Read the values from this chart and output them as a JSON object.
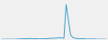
{
  "values": [
    0,
    0,
    0,
    0,
    0,
    0,
    0,
    1,
    1,
    2,
    2,
    2,
    2,
    3,
    2,
    2,
    2,
    1,
    2,
    2,
    2,
    3,
    3,
    4,
    4,
    5,
    6,
    5,
    4,
    140,
    80,
    18,
    7,
    4,
    3,
    2,
    2,
    2,
    1,
    1,
    1,
    1,
    1,
    0,
    0,
    0,
    0,
    0
  ],
  "line_color": "#3d9fce",
  "background_color": "#f0f0f0",
  "ylim_min": 0,
  "ylim_max": 155
}
